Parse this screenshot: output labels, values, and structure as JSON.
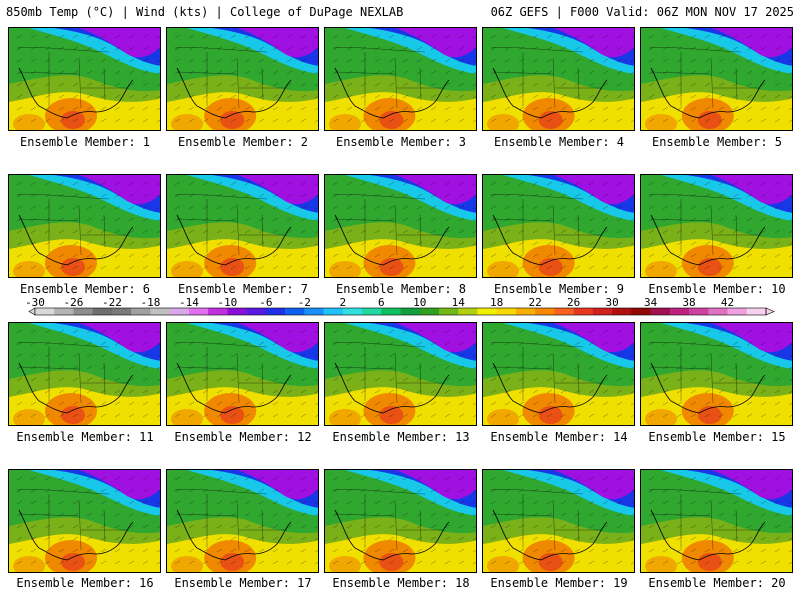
{
  "header": {
    "left_title": "850mb Temp (°C) | Wind (kts) | College of DuPage NEXLAB",
    "right_title": "06Z GEFS | F000 Valid: 06Z MON NOV 17 2025"
  },
  "member_label_prefix": "Ensemble Member: ",
  "members": [
    1,
    2,
    3,
    4,
    5,
    6,
    7,
    8,
    9,
    10,
    11,
    12,
    13,
    14,
    15,
    16,
    17,
    18,
    19,
    20
  ],
  "colorbar": {
    "tick_labels": [
      "-30",
      "-26",
      "-22",
      "-18",
      "-14",
      "-10",
      "-6",
      "-2",
      "2",
      "6",
      "10",
      "14",
      "18",
      "22",
      "26",
      "30",
      "34",
      "38",
      "42"
    ],
    "colors": [
      "#d8d8d8",
      "#b4b4b4",
      "#8c8c8c",
      "#6e6e6e",
      "#7a7a7a",
      "#a0a0a0",
      "#c0c0c0",
      "#d8a8e8",
      "#e070f0",
      "#c030e0",
      "#8a10d8",
      "#5a18e0",
      "#2030e8",
      "#1060f0",
      "#1890f8",
      "#20c0f8",
      "#30e0e0",
      "#20d8a0",
      "#10c060",
      "#10a040",
      "#30a020",
      "#70b818",
      "#b0d010",
      "#f0f000",
      "#f8d800",
      "#f8b000",
      "#f88800",
      "#f86020",
      "#e83820",
      "#d02020",
      "#b01010",
      "#900808",
      "#a01050",
      "#c02080",
      "#d040a0",
      "#e070c0",
      "#f0a0e0",
      "#f8d0f0"
    ]
  },
  "map_palette": {
    "north_purple": "#a010e0",
    "blue": "#1838e8",
    "cyan": "#18c8e8",
    "green": "#30a830",
    "olive": "#7ab018",
    "yellow": "#f0e000",
    "orange": "#f08000",
    "red_orange": "#e84818"
  }
}
